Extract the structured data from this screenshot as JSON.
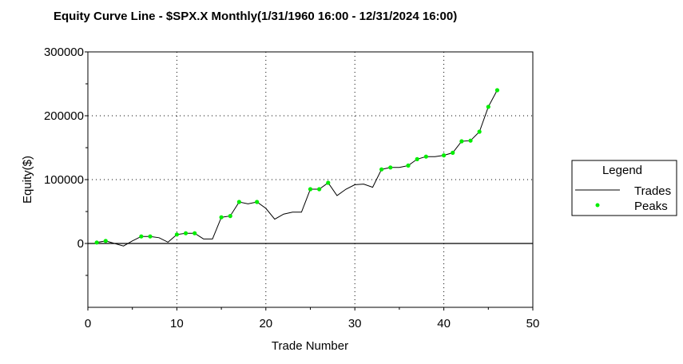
{
  "chart_data": {
    "type": "line",
    "title": "Equity Curve Line - $SPX.X Monthly(1/31/1960 16:00 - 12/31/2024 16:00)",
    "xlabel": "Trade Number",
    "ylabel": "Equity($)",
    "xlim": [
      0,
      50
    ],
    "ylim": [
      -100000,
      300000
    ],
    "x_ticks": [
      "0",
      "10",
      "20",
      "30",
      "40",
      "50"
    ],
    "y_ticks": [
      "300000",
      "200000",
      "100000",
      "0"
    ],
    "x_tick_values": [
      0,
      10,
      20,
      30,
      40,
      50
    ],
    "y_tick_values": [
      300000,
      200000,
      100000,
      0
    ],
    "grid": "dotted",
    "legend": {
      "title": "Legend",
      "position": "right",
      "entries": [
        "Trades",
        "Peaks"
      ]
    },
    "series": [
      {
        "name": "Trades",
        "color": "#000000",
        "x": [
          1,
          2,
          3,
          4,
          5,
          6,
          7,
          8,
          9,
          10,
          11,
          12,
          13,
          14,
          15,
          16,
          17,
          18,
          19,
          20,
          21,
          22,
          23,
          24,
          25,
          26,
          27,
          28,
          29,
          30,
          31,
          32,
          33,
          34,
          35,
          36,
          37,
          38,
          39,
          40,
          41,
          42,
          43,
          44,
          45,
          46
        ],
        "y": [
          1500,
          4000,
          0,
          -4000,
          4000,
          11000,
          11000,
          9000,
          2000,
          14000,
          16000,
          16000,
          7000,
          7000,
          41000,
          43000,
          65000,
          62000,
          65000,
          55000,
          38000,
          46000,
          49000,
          49000,
          85000,
          85000,
          95000,
          75000,
          85000,
          92000,
          93000,
          88000,
          116000,
          119000,
          119000,
          122000,
          132000,
          136000,
          136000,
          138000,
          142000,
          160000,
          161000,
          175000,
          214000,
          240000
        ]
      },
      {
        "name": "Peaks",
        "color": "#00ee00",
        "x": [
          1,
          2,
          6,
          7,
          10,
          11,
          12,
          15,
          16,
          17,
          19,
          25,
          26,
          27,
          33,
          34,
          36,
          37,
          38,
          40,
          41,
          42,
          43,
          44,
          45,
          46
        ],
        "y": [
          1500,
          4000,
          11000,
          11000,
          14000,
          16000,
          16000,
          41000,
          43000,
          65000,
          65000,
          85000,
          85000,
          95000,
          116000,
          119000,
          122000,
          132000,
          136000,
          138000,
          142000,
          160000,
          161000,
          175000,
          214000,
          240000
        ]
      }
    ]
  }
}
